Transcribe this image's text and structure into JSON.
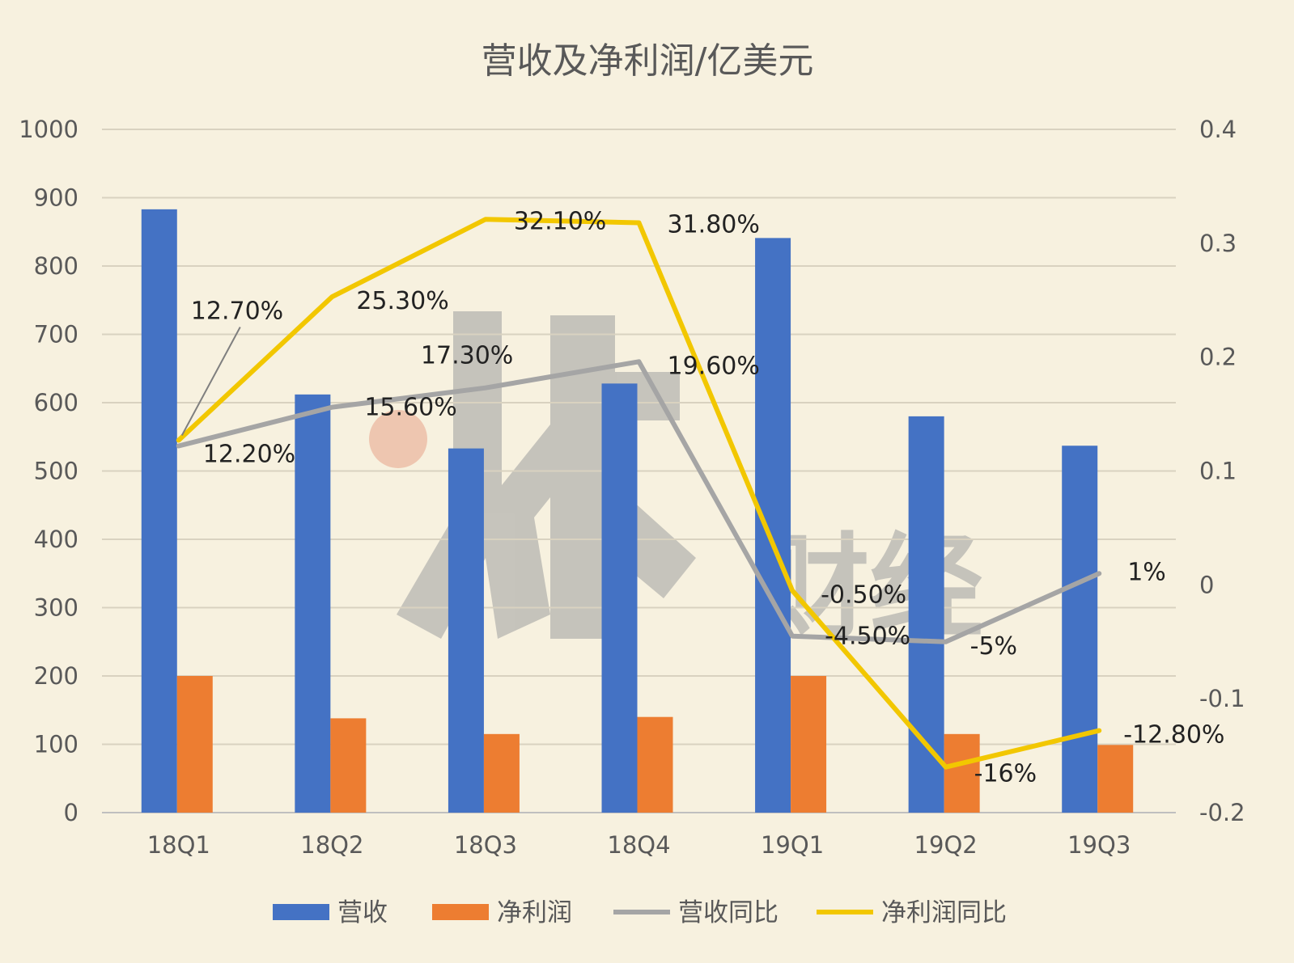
{
  "chart_data": {
    "type": "bar",
    "title": "营收及净利润/亿美元",
    "categories": [
      "18Q1",
      "18Q2",
      "18Q3",
      "18Q4",
      "19Q1",
      "19Q2",
      "19Q3"
    ],
    "ylim": [
      0,
      1000
    ],
    "yticks": [
      0,
      100,
      200,
      300,
      400,
      500,
      600,
      700,
      800,
      900,
      1000
    ],
    "y2lim": [
      -0.2,
      0.4
    ],
    "y2ticks": [
      "-0.2",
      "-0.1",
      "0",
      "0.1",
      "0.2",
      "0.3",
      "0.4"
    ],
    "grid": true,
    "legend_position": "bottom",
    "series": [
      {
        "name": "营收",
        "type": "bar",
        "axis": "left",
        "color": "#4472c4",
        "values": [
          883,
          612,
          533,
          628,
          841,
          580,
          537
        ]
      },
      {
        "name": "净利润",
        "type": "bar",
        "axis": "left",
        "color": "#ed7d31",
        "values": [
          200,
          138,
          115,
          140,
          200,
          115,
          99
        ]
      },
      {
        "name": "营收同比",
        "type": "line",
        "axis": "right",
        "color": "#a5a5a5",
        "values": [
          0.122,
          0.156,
          0.173,
          0.196,
          -0.045,
          -0.05,
          0.01
        ],
        "labels": [
          "12.20%",
          "15.60%",
          "17.30%",
          "19.60%",
          "-4.50%",
          "-5%",
          "1%"
        ]
      },
      {
        "name": "净利润同比",
        "type": "line",
        "axis": "right",
        "color": "#f2c700",
        "values": [
          0.127,
          0.253,
          0.321,
          0.318,
          -0.005,
          -0.16,
          -0.128
        ],
        "labels": [
          "12.70%",
          "25.30%",
          "32.10%",
          "31.80%",
          "-0.50%",
          "-16%",
          "-12.80%"
        ]
      }
    ]
  },
  "watermark": {
    "text": "财经"
  }
}
